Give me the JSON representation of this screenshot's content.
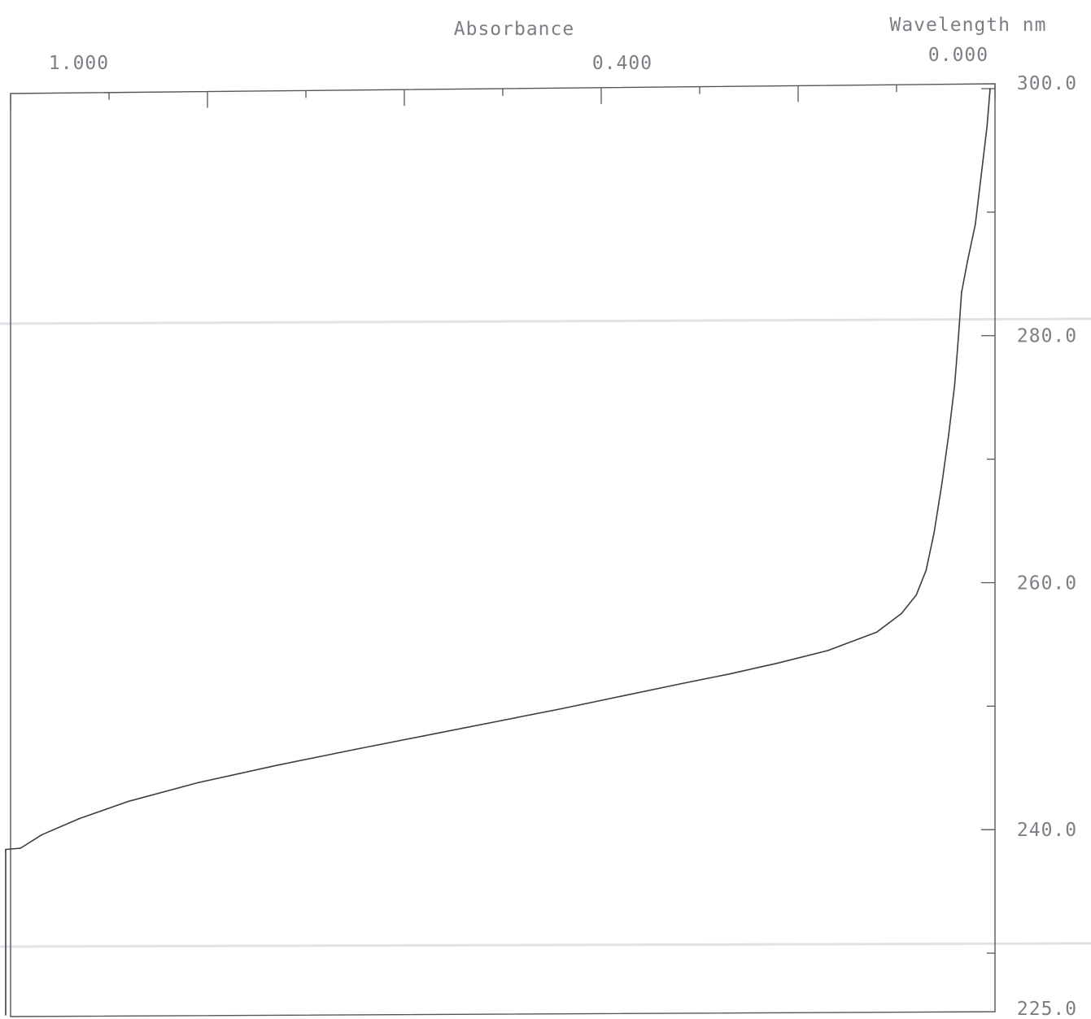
{
  "chart_data": {
    "type": "line",
    "orientation": "absorbance on horizontal axis (top, decreasing to the right), wavelength on vertical axis (right, decreasing downward)",
    "title": "",
    "x_axis": {
      "label": "Absorbance",
      "range": [
        1.0,
        0.0
      ],
      "tick_labels": [
        {
          "value": 1.0,
          "text": "1.000"
        },
        {
          "value": 0.4,
          "text": "0.400"
        },
        {
          "value": 0.0,
          "text": "0.000"
        }
      ],
      "major_ticks": [
        1.0,
        0.8,
        0.6,
        0.4,
        0.2,
        0.0
      ],
      "minor_ticks": [
        0.9,
        0.7,
        0.5,
        0.3,
        0.1
      ]
    },
    "y_axis": {
      "label": "Wavelength nm",
      "range": [
        225.0,
        300.0
      ],
      "tick_labels": [
        {
          "value": 300.0,
          "text": "300.0"
        },
        {
          "value": 280.0,
          "text": "280.0"
        },
        {
          "value": 260.0,
          "text": "260.0"
        },
        {
          "value": 240.0,
          "text": "240.0"
        },
        {
          "value": 225.0,
          "text": "225.0"
        }
      ],
      "major_ticks": [
        300,
        280,
        260,
        240
      ],
      "minor_ticks": [
        290,
        270,
        250,
        230
      ]
    },
    "grid": false,
    "legend": "none",
    "series": [
      {
        "points": [
          {
            "wavelength": 300.0,
            "absorbance": 0.005
          },
          {
            "wavelength": 297.0,
            "absorbance": 0.008
          },
          {
            "wavelength": 293.0,
            "absorbance": 0.014
          },
          {
            "wavelength": 289.0,
            "absorbance": 0.02
          },
          {
            "wavelength": 286.0,
            "absorbance": 0.028
          },
          {
            "wavelength": 283.5,
            "absorbance": 0.034
          },
          {
            "wavelength": 280.0,
            "absorbance": 0.037
          },
          {
            "wavelength": 276.0,
            "absorbance": 0.041
          },
          {
            "wavelength": 272.0,
            "absorbance": 0.047
          },
          {
            "wavelength": 268.0,
            "absorbance": 0.054
          },
          {
            "wavelength": 264.0,
            "absorbance": 0.062
          },
          {
            "wavelength": 261.0,
            "absorbance": 0.07
          },
          {
            "wavelength": 259.0,
            "absorbance": 0.08
          },
          {
            "wavelength": 257.5,
            "absorbance": 0.095
          },
          {
            "wavelength": 256.0,
            "absorbance": 0.12
          },
          {
            "wavelength": 254.5,
            "absorbance": 0.17
          },
          {
            "wavelength": 253.5,
            "absorbance": 0.22
          },
          {
            "wavelength": 252.6,
            "absorbance": 0.27
          },
          {
            "wavelength": 251.8,
            "absorbance": 0.32
          },
          {
            "wavelength": 250.8,
            "absorbance": 0.38
          },
          {
            "wavelength": 249.8,
            "absorbance": 0.44
          },
          {
            "wavelength": 248.7,
            "absorbance": 0.51
          },
          {
            "wavelength": 247.6,
            "absorbance": 0.58
          },
          {
            "wavelength": 246.5,
            "absorbance": 0.65
          },
          {
            "wavelength": 245.2,
            "absorbance": 0.73
          },
          {
            "wavelength": 243.8,
            "absorbance": 0.81
          },
          {
            "wavelength": 242.3,
            "absorbance": 0.88
          },
          {
            "wavelength": 240.9,
            "absorbance": 0.93
          },
          {
            "wavelength": 239.6,
            "absorbance": 0.968
          },
          {
            "wavelength": 238.5,
            "absorbance": 0.99
          },
          {
            "wavelength": 238.4,
            "absorbance": 1.005
          },
          {
            "wavelength": 225.0,
            "absorbance": 1.005
          }
        ]
      }
    ]
  }
}
